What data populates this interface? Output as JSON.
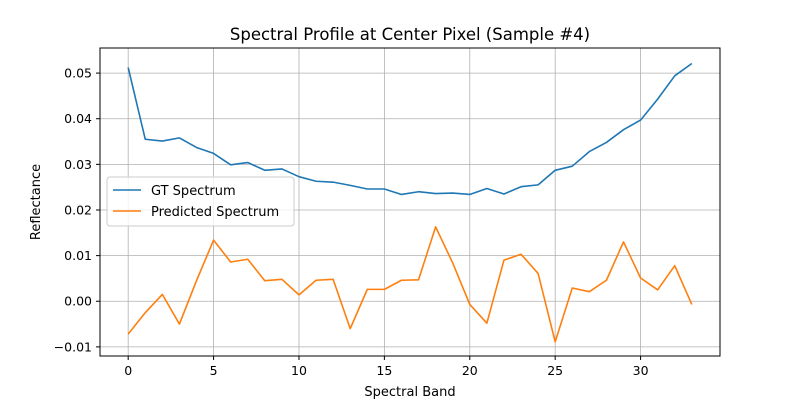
{
  "chart_data": {
    "type": "line",
    "title": "Spectral Profile at Center Pixel (Sample #4)",
    "xlabel": "Spectral Band",
    "ylabel": "Reflectance",
    "xlim": [
      -1.65,
      34.65
    ],
    "ylim": [
      -0.012,
      0.0555
    ],
    "xticks": [
      0,
      5,
      10,
      15,
      20,
      25,
      30
    ],
    "xtick_labels": [
      "0",
      "5",
      "10",
      "15",
      "20",
      "25",
      "30"
    ],
    "yticks": [
      -0.01,
      0.0,
      0.01,
      0.02,
      0.03,
      0.04,
      0.05
    ],
    "ytick_labels": [
      "−0.01",
      "0.00",
      "0.01",
      "0.02",
      "0.03",
      "0.04",
      "0.05"
    ],
    "grid": true,
    "legend_position": "center-left",
    "x": [
      0,
      1,
      2,
      3,
      4,
      5,
      6,
      7,
      8,
      9,
      10,
      11,
      12,
      13,
      14,
      15,
      16,
      17,
      18,
      19,
      20,
      21,
      22,
      23,
      24,
      25,
      26,
      27,
      28,
      29,
      30,
      31,
      32,
      33
    ],
    "series": [
      {
        "name": "GT Spectrum",
        "color": "#1f77b4",
        "values": [
          0.0512,
          0.0355,
          0.0351,
          0.0358,
          0.0337,
          0.0324,
          0.0299,
          0.0304,
          0.0287,
          0.029,
          0.0273,
          0.0263,
          0.0261,
          0.0254,
          0.0246,
          0.0246,
          0.0234,
          0.024,
          0.0236,
          0.0237,
          0.0234,
          0.0247,
          0.0235,
          0.0251,
          0.0255,
          0.0287,
          0.0296,
          0.0328,
          0.0348,
          0.0376,
          0.0397,
          0.0443,
          0.0494,
          0.0521
        ]
      },
      {
        "name": "Predicted Spectrum",
        "color": "#ff7f0e",
        "values": [
          -0.0072,
          -0.0025,
          0.0015,
          -0.005,
          0.0045,
          0.0134,
          0.0086,
          0.0092,
          0.0045,
          0.0048,
          0.0014,
          0.0046,
          0.0048,
          -0.006,
          0.0026,
          0.0026,
          0.0046,
          0.0047,
          0.0163,
          0.0084,
          -0.0007,
          -0.0048,
          0.009,
          0.0103,
          0.0061,
          -0.0089,
          0.0029,
          0.0021,
          0.0046,
          0.013,
          0.0051,
          0.0025,
          0.0078,
          -0.0007
        ]
      }
    ]
  }
}
